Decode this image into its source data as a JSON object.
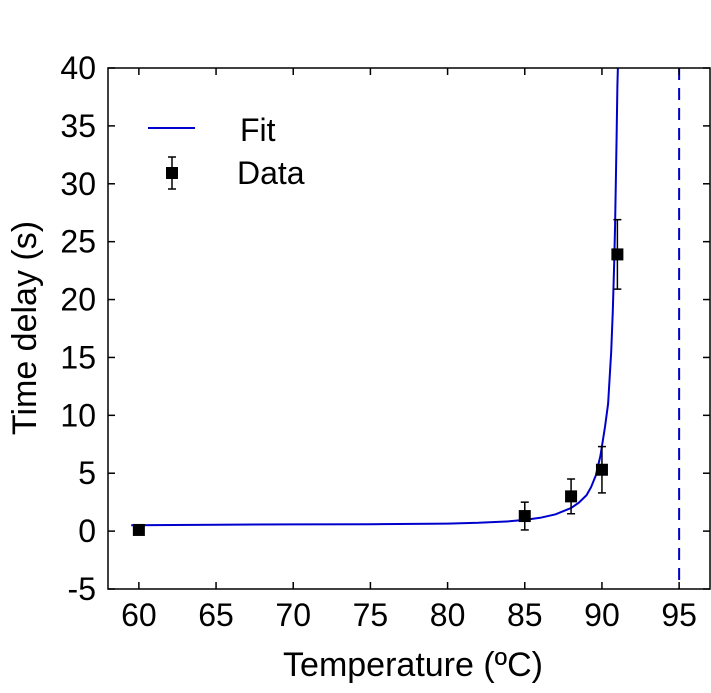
{
  "chart_data": {
    "type": "scatter",
    "title": "",
    "xlabel": "Temperature (ºC)",
    "ylabel": "Time delay (s)",
    "xlim": [
      58,
      97
    ],
    "ylim": [
      -5,
      40
    ],
    "xticks": [
      60,
      65,
      70,
      75,
      80,
      85,
      90,
      95
    ],
    "yticks": [
      -5,
      0,
      5,
      10,
      15,
      20,
      25,
      30,
      35,
      40
    ],
    "grid": false,
    "legend_position": "top-left",
    "series": [
      {
        "name": "Fit",
        "kind": "line",
        "color": "#0000cc",
        "x": [
          59.5,
          65,
          70,
          75,
          80,
          82,
          84,
          85,
          86,
          87,
          88,
          88.5,
          89,
          89.3,
          89.6,
          89.9,
          90.2,
          90.4,
          90.6,
          90.7,
          90.8,
          90.85,
          90.9,
          90.95,
          91.0,
          91.05,
          91.1
        ],
        "y": [
          0.5,
          0.55,
          0.58,
          0.6,
          0.65,
          0.72,
          0.85,
          0.97,
          1.15,
          1.45,
          2.0,
          2.45,
          3.1,
          3.8,
          4.8,
          6.5,
          9.0,
          11.0,
          15.5,
          19.0,
          23.5,
          26.5,
          30.0,
          34.0,
          38.5,
          41.0,
          45.0
        ]
      },
      {
        "name": "Data",
        "kind": "scatter",
        "color": "#000000",
        "x": [
          60,
          85,
          88,
          90,
          91
        ],
        "y": [
          0.1,
          1.3,
          3.0,
          5.3,
          23.9
        ],
        "yerr": [
          0,
          1.2,
          1.5,
          2.0,
          3.0
        ]
      }
    ],
    "reference_line": {
      "x": 95,
      "style": "dashed",
      "color": "#0000cc"
    }
  }
}
